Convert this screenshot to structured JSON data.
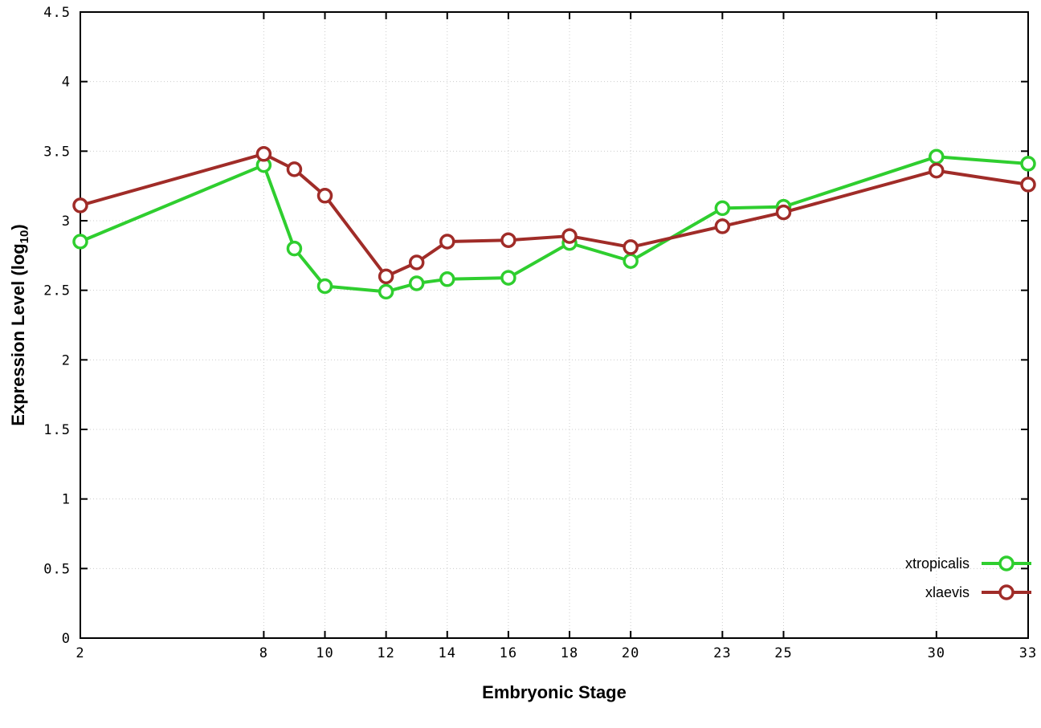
{
  "chart_data": {
    "type": "line",
    "title": "",
    "xlabel": "Embryonic Stage",
    "ylabel": "Expression Level (log10)",
    "ylabel_parts": {
      "main": "Expression Level (log",
      "sub": "10",
      "close": ")"
    },
    "xlim": [
      2,
      33
    ],
    "ylim": [
      0,
      4.5
    ],
    "grid": true,
    "grid_color": "#cccccc",
    "border_color": "#000000",
    "background": "#ffffff",
    "legend_position": "bottom-right",
    "x_ticks": [
      2,
      8,
      10,
      12,
      14,
      16,
      18,
      20,
      23,
      25,
      30,
      33
    ],
    "y_ticks": [
      0,
      0.5,
      1,
      1.5,
      2,
      2.5,
      3,
      3.5,
      4,
      4.5
    ],
    "x": [
      2,
      8,
      9,
      10,
      12,
      13,
      14,
      16,
      18,
      20,
      23,
      25,
      30,
      33
    ],
    "series": [
      {
        "name": "xtropicalis",
        "color": "#2fce2f",
        "values": [
          2.85,
          3.4,
          2.8,
          2.53,
          2.49,
          2.55,
          2.58,
          2.59,
          2.84,
          2.71,
          3.09,
          3.1,
          3.46,
          3.41
        ]
      },
      {
        "name": "xlaevis",
        "color": "#a02c28",
        "values": [
          3.11,
          3.48,
          3.37,
          3.18,
          2.6,
          2.7,
          2.85,
          2.86,
          2.89,
          2.81,
          2.96,
          3.06,
          3.36,
          3.26
        ]
      }
    ]
  }
}
